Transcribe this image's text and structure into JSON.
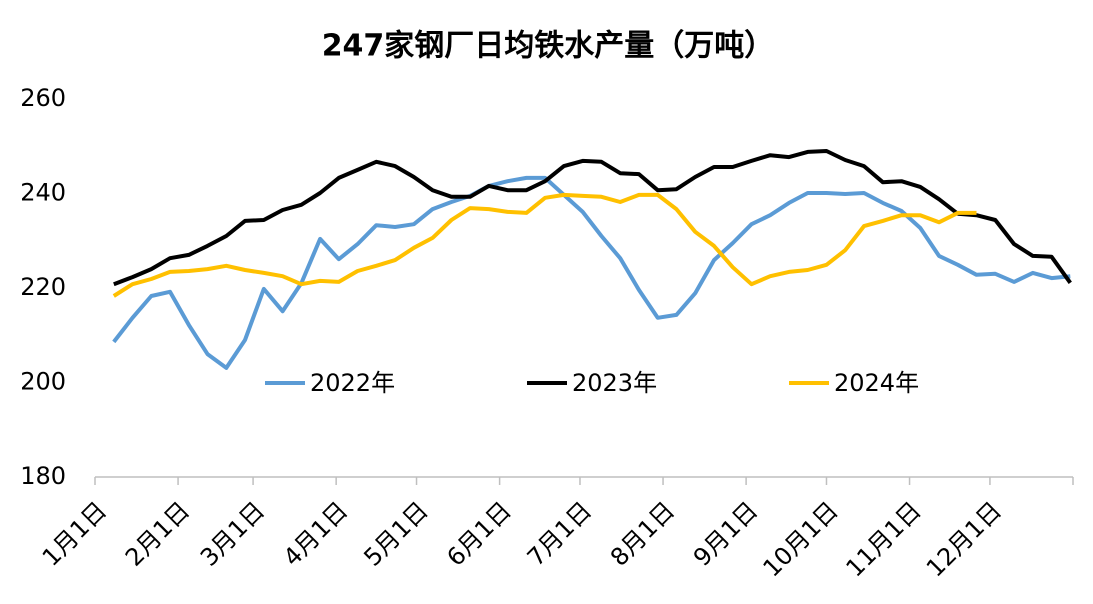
{
  "chart_data": {
    "type": "line",
    "title": "247家钢厂日均铁水产量（万吨）",
    "x": [
      8,
      15,
      22,
      29,
      36,
      43,
      50,
      57,
      64,
      71,
      78,
      85,
      92,
      99,
      106,
      113,
      120,
      127,
      134,
      141,
      148,
      155,
      162,
      169,
      176,
      183,
      190,
      197,
      204,
      211,
      218,
      225,
      232,
      239,
      246,
      253,
      260,
      267,
      274,
      281,
      288,
      295,
      302,
      309,
      316,
      323,
      330,
      337,
      344,
      351,
      358,
      365
    ],
    "xlim": [
      1,
      366
    ],
    "xticks": [
      {
        "value": 1,
        "label": "1月1日"
      },
      {
        "value": 32,
        "label": "2月1日"
      },
      {
        "value": 60,
        "label": "3月1日"
      },
      {
        "value": 91,
        "label": "4月1日"
      },
      {
        "value": 121,
        "label": "5月1日"
      },
      {
        "value": 152,
        "label": "6月1日"
      },
      {
        "value": 182,
        "label": "7月1日"
      },
      {
        "value": 213,
        "label": "8月1日"
      },
      {
        "value": 244,
        "label": "9月1日"
      },
      {
        "value": 274,
        "label": "10月1日"
      },
      {
        "value": 305,
        "label": "11月1日"
      },
      {
        "value": 335,
        "label": "12月1日"
      }
    ],
    "ylim": [
      180,
      260
    ],
    "yticks": [
      180,
      200,
      220,
      240,
      260
    ],
    "legend": "inside-bottom",
    "series": [
      {
        "name": "2022年",
        "color": "#5b9bd5",
        "values": [
          208.6,
          213.7,
          218.3,
          219.2,
          212.2,
          206,
          203.1,
          209,
          219.8,
          215.1,
          221,
          230.4,
          226.1,
          229.3,
          233.3,
          232.9,
          233.5,
          236.7,
          238.2,
          239.5,
          241.6,
          242.6,
          243.3,
          243.3,
          239.7,
          236.1,
          231,
          226.3,
          219.6,
          213.7,
          214.3,
          218.9,
          225.9,
          229.5,
          233.5,
          235.4,
          238,
          240.1,
          240.1,
          239.9,
          240.1,
          238,
          236.3,
          232.7,
          226.8,
          224.9,
          222.8,
          223,
          221.3,
          223.2,
          222.1,
          222.5
        ]
      },
      {
        "name": "2023年",
        "color": "#000000",
        "values": [
          220.8,
          222.3,
          224,
          226.3,
          227,
          228.9,
          231,
          234.2,
          234.4,
          236.5,
          237.6,
          240.1,
          243.3,
          245,
          246.7,
          245.8,
          243.5,
          240.7,
          239.3,
          239.3,
          241.6,
          240.7,
          240.7,
          242.6,
          245.8,
          246.9,
          246.7,
          244.3,
          244.1,
          240.7,
          240.9,
          243.5,
          245.6,
          245.6,
          246.9,
          248.1,
          247.7,
          248.8,
          249,
          247.1,
          245.8,
          242.4,
          242.6,
          241.4,
          238.8,
          235.7,
          235.4,
          234.4,
          229.3,
          226.8,
          226.6,
          221.1
        ]
      },
      {
        "name": "2024年",
        "color": "#ffc000",
        "values": [
          218.3,
          220.8,
          221.9,
          223.4,
          223.6,
          224,
          224.7,
          223.8,
          223.2,
          222.5,
          220.8,
          221.5,
          221.3,
          223.6,
          224.7,
          225.9,
          228.5,
          230.6,
          234.4,
          236.9,
          236.7,
          236.1,
          235.9,
          239.1,
          239.7,
          239.5,
          239.3,
          238.2,
          239.7,
          239.7,
          236.7,
          231.9,
          228.9,
          224.4,
          220.8,
          222.5,
          223.4,
          223.8,
          224.9,
          228,
          233.1,
          234.2,
          235.4,
          235.4,
          233.9,
          235.9,
          235.9,
          null,
          null,
          null,
          null,
          null
        ]
      }
    ]
  }
}
